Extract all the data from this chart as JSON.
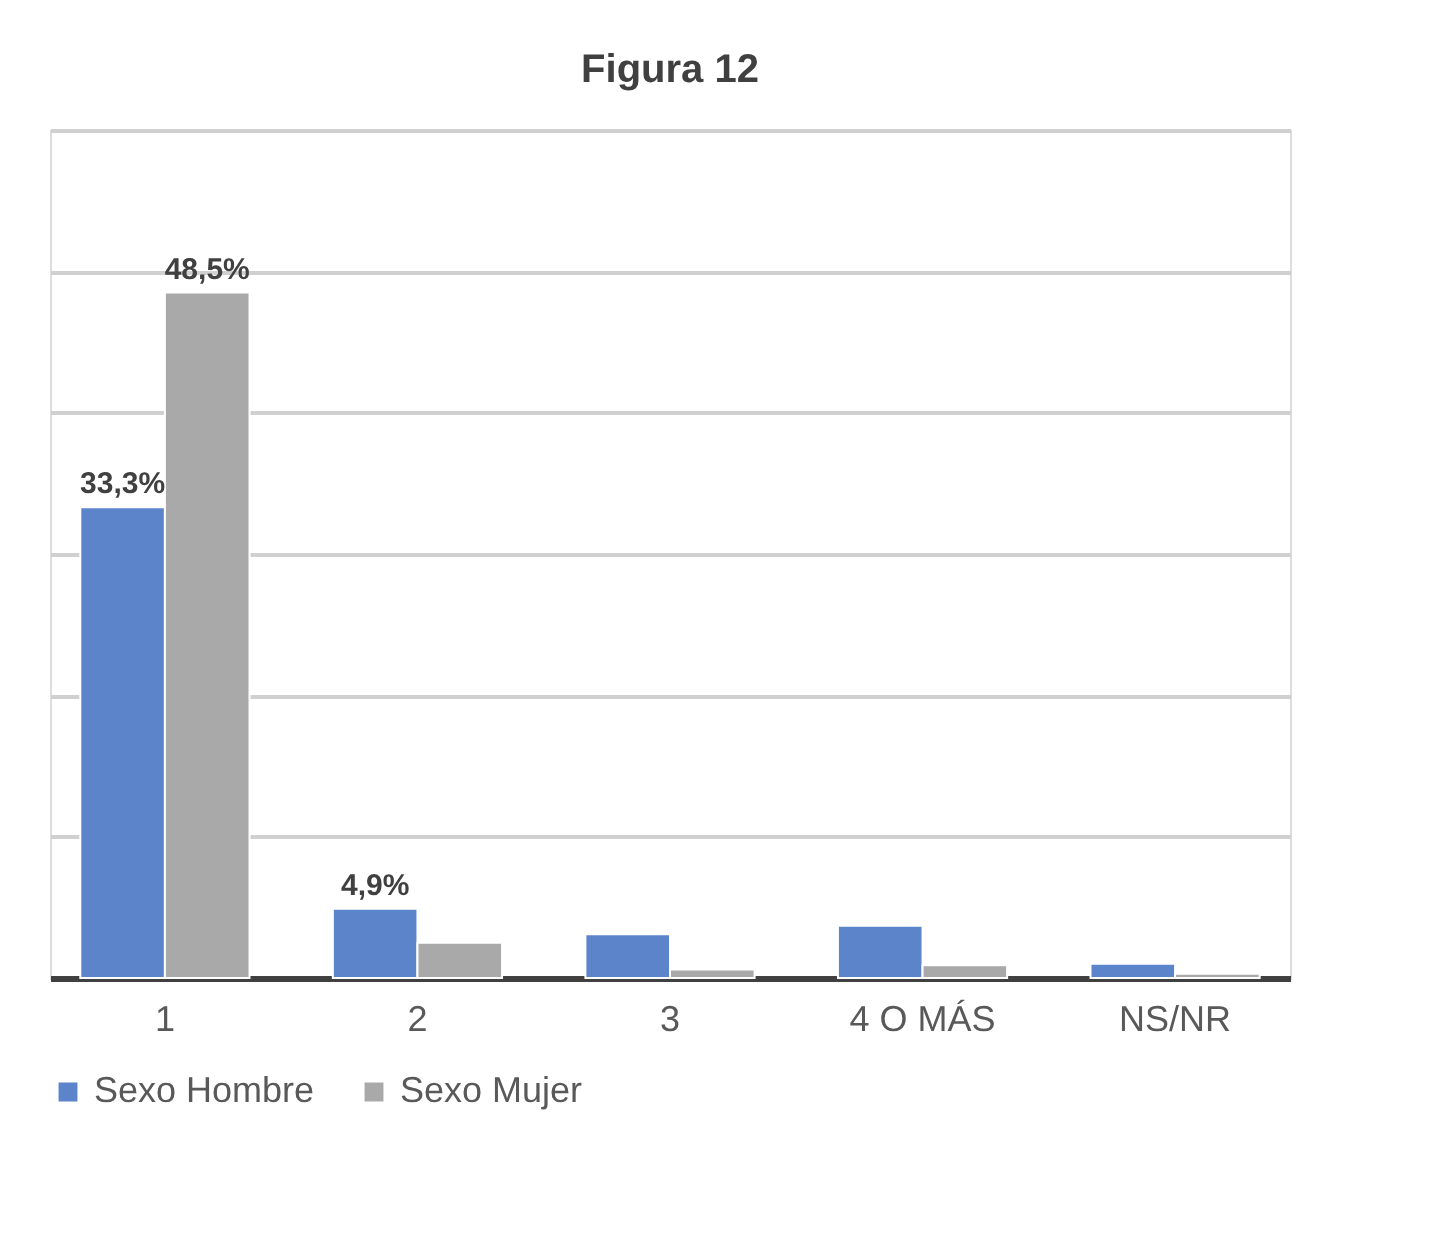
{
  "chart_data": {
    "type": "bar",
    "title": "Figura 12",
    "categories": [
      "1",
      "2",
      "3",
      "4 O MÁS",
      "NS/NR"
    ],
    "series": [
      {
        "name": "Sexo Hombre",
        "color": "#5b84cb",
        "values": [
          33.3,
          4.9,
          3.1,
          3.7,
          1.0
        ],
        "value_labels": [
          "33,3%",
          "4,9%",
          null,
          null,
          null
        ]
      },
      {
        "name": "Sexo Mujer",
        "color": "#a9a9a9",
        "values": [
          48.5,
          2.5,
          0.6,
          0.9,
          0.3
        ],
        "value_labels": [
          "48,5%",
          null,
          null,
          null,
          null
        ]
      }
    ],
    "ylim": [
      0,
      60
    ],
    "yticks": [
      {
        "value": 0,
        "label": null
      },
      {
        "value": 10,
        "label": null
      },
      {
        "value": 20,
        "label": null
      },
      {
        "value": 30,
        "label": null
      },
      {
        "value": 40,
        "label": null
      },
      {
        "value": 50,
        "label": null
      },
      {
        "value": 60,
        "label": null
      }
    ],
    "tick_labels": "x",
    "grid": "y",
    "legend": "bottom"
  }
}
